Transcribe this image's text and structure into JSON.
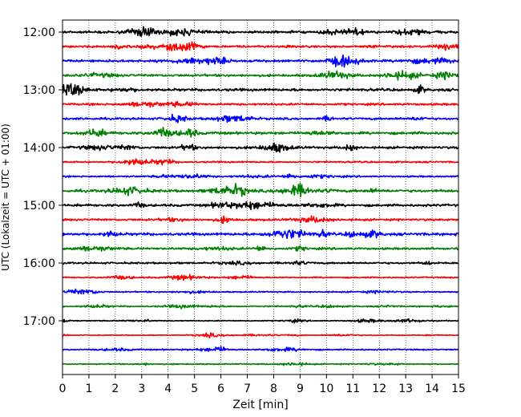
{
  "chart_data": {
    "type": "line",
    "title": "",
    "xlabel": "Zeit  [min]",
    "ylabel": "UTC (Lokalzeit = UTC + 01:00)",
    "xlim": [
      0,
      15
    ],
    "x_ticks": [
      "0",
      "1",
      "2",
      "3",
      "4",
      "5",
      "6",
      "7",
      "8",
      "9",
      "10",
      "11",
      "12",
      "13",
      "14",
      "15"
    ],
    "y_ticks": [
      "12:00",
      "13:00",
      "14:00",
      "15:00",
      "16:00",
      "17:00"
    ],
    "grid": "vertical dotted at each minute",
    "trace_interval_minutes": 15,
    "first_trace": "12:00",
    "trace_colors": [
      "#000000",
      "#ff0000",
      "#0000ff",
      "#008000"
    ],
    "series": [
      {
        "start": "12:00",
        "color": "#000000",
        "amplitude": 0.9
      },
      {
        "start": "12:15",
        "color": "#ff0000",
        "amplitude": 0.8
      },
      {
        "start": "12:30",
        "color": "#0000ff",
        "amplitude": 0.9
      },
      {
        "start": "12:45",
        "color": "#008000",
        "amplitude": 0.9
      },
      {
        "start": "13:00",
        "color": "#000000",
        "amplitude": 1.0
      },
      {
        "start": "13:15",
        "color": "#ff0000",
        "amplitude": 0.8
      },
      {
        "start": "13:30",
        "color": "#0000ff",
        "amplitude": 0.8
      },
      {
        "start": "13:45",
        "color": "#008000",
        "amplitude": 1.0
      },
      {
        "start": "14:00",
        "color": "#000000",
        "amplitude": 0.9
      },
      {
        "start": "14:15",
        "color": "#ff0000",
        "amplitude": 0.6
      },
      {
        "start": "14:30",
        "color": "#0000ff",
        "amplitude": 0.6
      },
      {
        "start": "14:45",
        "color": "#008000",
        "amplitude": 1.0
      },
      {
        "start": "15:00",
        "color": "#000000",
        "amplitude": 0.9
      },
      {
        "start": "15:15",
        "color": "#ff0000",
        "amplitude": 0.8
      },
      {
        "start": "15:30",
        "color": "#0000ff",
        "amplitude": 1.0
      },
      {
        "start": "15:45",
        "color": "#008000",
        "amplitude": 0.8
      },
      {
        "start": "16:00",
        "color": "#000000",
        "amplitude": 0.7
      },
      {
        "start": "16:15",
        "color": "#ff0000",
        "amplitude": 0.5
      },
      {
        "start": "16:30",
        "color": "#0000ff",
        "amplitude": 0.5
      },
      {
        "start": "16:45",
        "color": "#008000",
        "amplitude": 0.5
      },
      {
        "start": "17:00",
        "color": "#000000",
        "amplitude": 0.4
      },
      {
        "start": "17:15",
        "color": "#ff0000",
        "amplitude": 0.3
      },
      {
        "start": "17:30",
        "color": "#0000ff",
        "amplitude": 0.5
      },
      {
        "start": "17:45",
        "color": "#008000",
        "amplitude": 0.4
      }
    ]
  }
}
